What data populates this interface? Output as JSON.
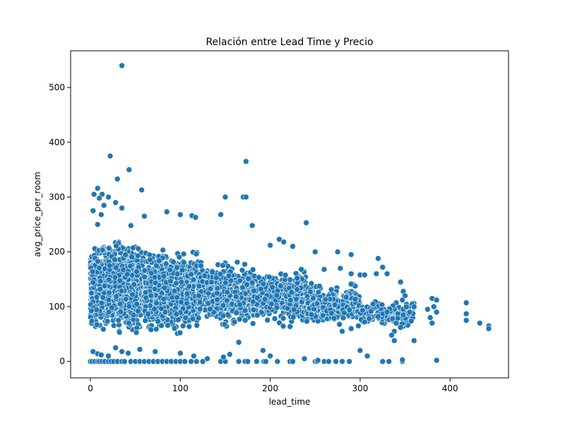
{
  "chart_data": {
    "type": "scatter",
    "title": "Relación entre Lead Time y Precio",
    "xlabel": "lead_time",
    "ylabel": "avg_price_per_room",
    "xlim": [
      -22,
      465
    ],
    "ylim": [
      -30,
      567
    ],
    "xticks": [
      0,
      100,
      200,
      300,
      400
    ],
    "yticks": [
      0,
      100,
      200,
      300,
      400,
      500
    ],
    "grid": false,
    "legend": "none",
    "marker_color": "#1f77b4",
    "marker_edge_color": "#ffffff",
    "density_bands": [
      {
        "x_from": 0,
        "x_to": 60,
        "y_low": 40,
        "y_high": 230,
        "count": 1400
      },
      {
        "x_from": 60,
        "x_to": 120,
        "y_low": 40,
        "y_high": 215,
        "count": 900
      },
      {
        "x_from": 120,
        "x_to": 180,
        "y_low": 55,
        "y_high": 190,
        "count": 650
      },
      {
        "x_from": 180,
        "x_to": 240,
        "y_low": 60,
        "y_high": 175,
        "count": 420
      },
      {
        "x_from": 240,
        "x_to": 300,
        "y_low": 60,
        "y_high": 150,
        "count": 280
      },
      {
        "x_from": 300,
        "x_to": 360,
        "y_low": 55,
        "y_high": 120,
        "count": 140
      }
    ],
    "points": [
      [
        35,
        540
      ],
      [
        22,
        375
      ],
      [
        173,
        365
      ],
      [
        43,
        350
      ],
      [
        30,
        333
      ],
      [
        57,
        313
      ],
      [
        8,
        316
      ],
      [
        4,
        305
      ],
      [
        13,
        305
      ],
      [
        10,
        298
      ],
      [
        20,
        300
      ],
      [
        28,
        290
      ],
      [
        35,
        280
      ],
      [
        15,
        285
      ],
      [
        170,
        300
      ],
      [
        173,
        300
      ],
      [
        150,
        300
      ],
      [
        3,
        275
      ],
      [
        12,
        268
      ],
      [
        60,
        265
      ],
      [
        85,
        273
      ],
      [
        100,
        268
      ],
      [
        113,
        266
      ],
      [
        117,
        263
      ],
      [
        145,
        268
      ],
      [
        180,
        248
      ],
      [
        240,
        253
      ],
      [
        8,
        250
      ],
      [
        45,
        248
      ],
      [
        200,
        212
      ],
      [
        210,
        223
      ],
      [
        215,
        218
      ],
      [
        225,
        210
      ],
      [
        250,
        200
      ],
      [
        275,
        200
      ],
      [
        290,
        195
      ],
      [
        260,
        168
      ],
      [
        278,
        170
      ],
      [
        290,
        160
      ],
      [
        300,
        158
      ],
      [
        305,
        158
      ],
      [
        320,
        188
      ],
      [
        325,
        172
      ],
      [
        330,
        160
      ],
      [
        318,
        160
      ],
      [
        345,
        145
      ],
      [
        348,
        128
      ],
      [
        350,
        120
      ],
      [
        347,
        112
      ],
      [
        358,
        105
      ],
      [
        360,
        100
      ],
      [
        375,
        95
      ],
      [
        380,
        115
      ],
      [
        385,
        112
      ],
      [
        385,
        90
      ],
      [
        382,
        100
      ],
      [
        378,
        80
      ],
      [
        380,
        70
      ],
      [
        418,
        107
      ],
      [
        418,
        87
      ],
      [
        418,
        75
      ],
      [
        433,
        70
      ],
      [
        443,
        65
      ],
      [
        443,
        60
      ],
      [
        355,
        90
      ],
      [
        348,
        85
      ],
      [
        336,
        78
      ],
      [
        340,
        70
      ],
      [
        345,
        62
      ],
      [
        338,
        55
      ],
      [
        335,
        48
      ],
      [
        338,
        38
      ],
      [
        360,
        38
      ],
      [
        330,
        90
      ],
      [
        320,
        82
      ],
      [
        310,
        78
      ],
      [
        305,
        72
      ],
      [
        298,
        65
      ],
      [
        290,
        60
      ],
      [
        280,
        55
      ],
      [
        0,
        0
      ],
      [
        2,
        0
      ],
      [
        5,
        0
      ],
      [
        8,
        0
      ],
      [
        10,
        0
      ],
      [
        13,
        0
      ],
      [
        16,
        0
      ],
      [
        20,
        0
      ],
      [
        23,
        0
      ],
      [
        26,
        0
      ],
      [
        30,
        0
      ],
      [
        35,
        0
      ],
      [
        38,
        0
      ],
      [
        45,
        0
      ],
      [
        50,
        0
      ],
      [
        55,
        0
      ],
      [
        60,
        0
      ],
      [
        65,
        0
      ],
      [
        70,
        0
      ],
      [
        75,
        0
      ],
      [
        80,
        0
      ],
      [
        85,
        0
      ],
      [
        90,
        0
      ],
      [
        95,
        0
      ],
      [
        100,
        0
      ],
      [
        105,
        0
      ],
      [
        112,
        0
      ],
      [
        118,
        0
      ],
      [
        125,
        0
      ],
      [
        145,
        0
      ],
      [
        150,
        0
      ],
      [
        165,
        0
      ],
      [
        172,
        0
      ],
      [
        175,
        0
      ],
      [
        185,
        0
      ],
      [
        193,
        0
      ],
      [
        195,
        0
      ],
      [
        208,
        0
      ],
      [
        222,
        0
      ],
      [
        225,
        0
      ],
      [
        250,
        0
      ],
      [
        252,
        0
      ],
      [
        260,
        0
      ],
      [
        265,
        0
      ],
      [
        273,
        0
      ],
      [
        280,
        0
      ],
      [
        288,
        0
      ],
      [
        325,
        0
      ],
      [
        332,
        0
      ],
      [
        347,
        0
      ],
      [
        385,
        2
      ],
      [
        347,
        3
      ],
      [
        253,
        2
      ],
      [
        238,
        5
      ],
      [
        3,
        18
      ],
      [
        8,
        14
      ],
      [
        12,
        12
      ],
      [
        20,
        10
      ],
      [
        28,
        25
      ],
      [
        35,
        18
      ],
      [
        42,
        15
      ],
      [
        55,
        22
      ],
      [
        72,
        18
      ],
      [
        100,
        15
      ],
      [
        115,
        10
      ],
      [
        130,
        5
      ],
      [
        148,
        8
      ],
      [
        155,
        13
      ],
      [
        165,
        35
      ],
      [
        192,
        20
      ],
      [
        200,
        10
      ],
      [
        300,
        20
      ],
      [
        308,
        10
      ]
    ]
  }
}
